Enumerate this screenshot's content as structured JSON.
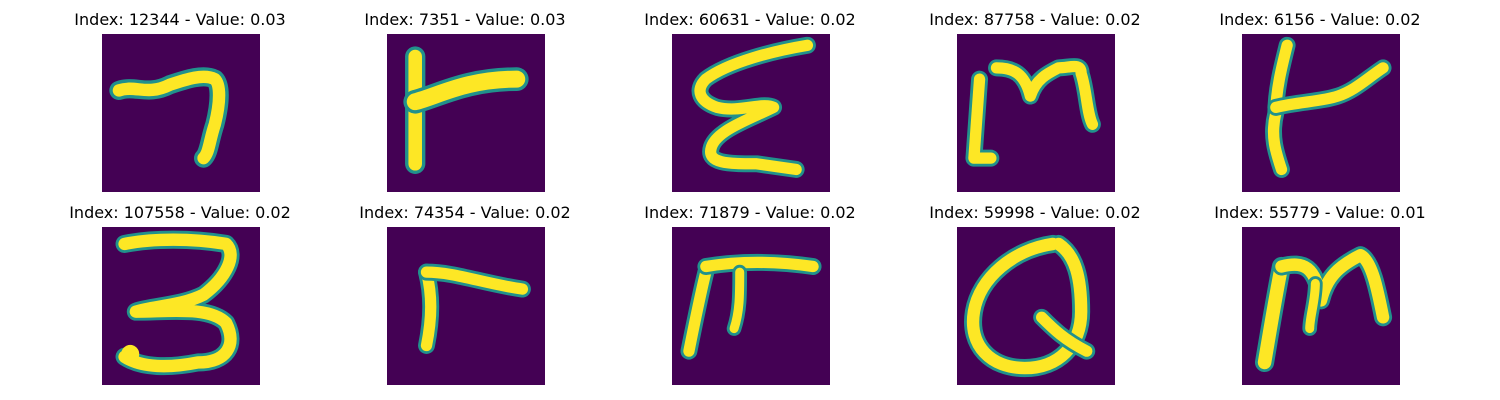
{
  "colors": {
    "background": "#440154",
    "stroke_edge": "#21918c",
    "stroke_core": "#fde725"
  },
  "panels": [
    {
      "title": "Index: 12344 - Value: 0.03",
      "glyph": "7"
    },
    {
      "title": "Index: 7351 - Value: 0.03",
      "glyph": "r"
    },
    {
      "title": "Index: 60631 - Value: 0.02",
      "glyph": "E"
    },
    {
      "title": "Index: 87758 - Value: 0.02",
      "glyph": "m"
    },
    {
      "title": "Index: 6156 - Value: 0.02",
      "glyph": "t"
    },
    {
      "title": "Index: 107558 - Value: 0.02",
      "glyph": "3"
    },
    {
      "title": "Index: 74354 - Value: 0.02",
      "glyph": "r"
    },
    {
      "title": "Index: 71879 - Value: 0.02",
      "glyph": "m"
    },
    {
      "title": "Index: 59998 - Value: 0.02",
      "glyph": "Q"
    },
    {
      "title": "Index: 55779 - Value: 0.01",
      "glyph": "m"
    }
  ]
}
